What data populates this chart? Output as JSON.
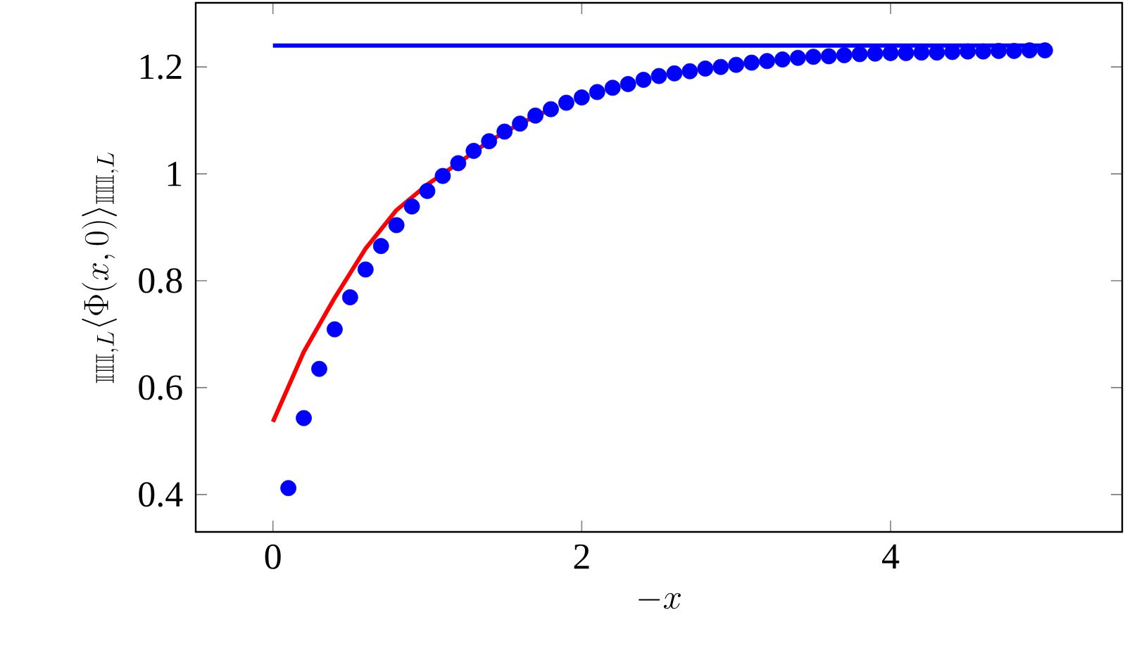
{
  "chart_data": {
    "type": "scatter",
    "xlabel": "-x",
    "ylabel": "{}_{\\mathbb{III},L}\\langle\\Phi(x,0)\\rangle_{\\mathbb{III},L}",
    "xlim": [
      -0.5,
      5.5
    ],
    "ylim": [
      0.33,
      1.32
    ],
    "xticks": [
      0,
      2,
      4
    ],
    "yticks": [
      0.4,
      0.6,
      0.8,
      1,
      1.2
    ],
    "grid": false,
    "series": [
      {
        "type": "line",
        "color": "#0000ff",
        "marker": "none",
        "line_style": "solid",
        "x": [
          0,
          5
        ],
        "values": [
          1.24,
          1.24
        ]
      },
      {
        "type": "line",
        "color": "#ff0000",
        "marker": "none",
        "line_style": "solid",
        "x": [
          0,
          0.2,
          0.4,
          0.6,
          0.8,
          1.0,
          1.2,
          1.4,
          1.6,
          1.8
        ],
        "values": [
          0.536,
          0.667,
          0.768,
          0.86,
          0.932,
          0.98,
          1.02,
          1.061,
          1.094,
          1.121
        ]
      },
      {
        "color": "#0000ff",
        "marker": "circle",
        "x": [
          0.1,
          0.2,
          0.3,
          0.4,
          0.5,
          0.6,
          0.7,
          0.8,
          0.9,
          1.0,
          1.1,
          1.2,
          1.3,
          1.4,
          1.5,
          1.6,
          1.7,
          1.8,
          1.9,
          2.0,
          2.1,
          2.2,
          2.3,
          2.4,
          2.5,
          2.6,
          2.7,
          2.8,
          2.9,
          3.0,
          3.1,
          3.2,
          3.3,
          3.4,
          3.5,
          3.6,
          3.7,
          3.8,
          3.9,
          4.0,
          4.1,
          4.2,
          4.3,
          4.4,
          4.5,
          4.6,
          4.7,
          4.8,
          4.9,
          5.0
        ],
        "values": [
          0.412,
          0.543,
          0.635,
          0.709,
          0.769,
          0.821,
          0.865,
          0.904,
          0.939,
          0.968,
          0.996,
          1.02,
          1.043,
          1.061,
          1.079,
          1.094,
          1.109,
          1.121,
          1.133,
          1.143,
          1.153,
          1.161,
          1.168,
          1.176,
          1.183,
          1.188,
          1.192,
          1.197,
          1.2,
          1.204,
          1.208,
          1.211,
          1.214,
          1.217,
          1.219,
          1.22,
          1.222,
          1.224,
          1.225,
          1.226,
          1.226,
          1.227,
          1.227,
          1.228,
          1.229,
          1.229,
          1.23,
          1.23,
          1.231,
          1.231
        ]
      }
    ]
  }
}
